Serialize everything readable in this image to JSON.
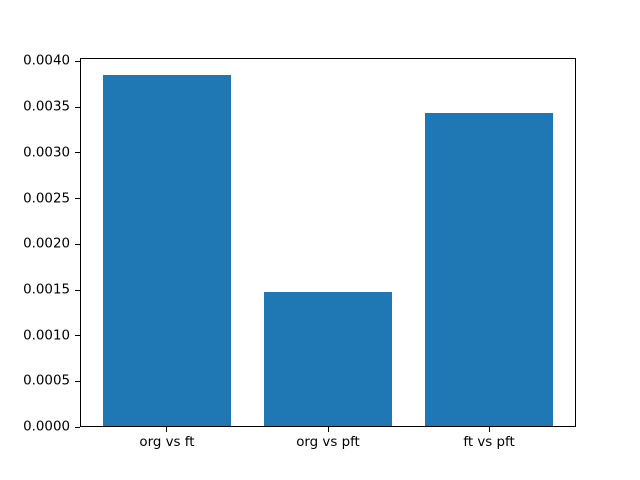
{
  "chart_data": {
    "type": "bar",
    "title": "",
    "xlabel": "",
    "ylabel": "",
    "categories": [
      "org vs ft",
      "org vs pft",
      "ft vs pft"
    ],
    "values": [
      0.00385,
      0.00148,
      0.00344
    ],
    "bar_color": "#1f77b4",
    "bar_width": 0.8,
    "xlim": [
      -0.54,
      2.54
    ],
    "ylim": [
      0,
      0.0040425
    ],
    "ytick_values": [
      0.0,
      0.0005,
      0.001,
      0.0015,
      0.002,
      0.0025,
      0.003,
      0.0035,
      0.004
    ],
    "ytick_labels": [
      "0.0000",
      "0.0005",
      "0.0010",
      "0.0015",
      "0.0020",
      "0.0025",
      "0.0030",
      "0.0035",
      "0.0040"
    ],
    "grid": false,
    "legend": null,
    "spine_color": "#000000",
    "background_color": "#ffffff",
    "text_color": "#000000"
  }
}
